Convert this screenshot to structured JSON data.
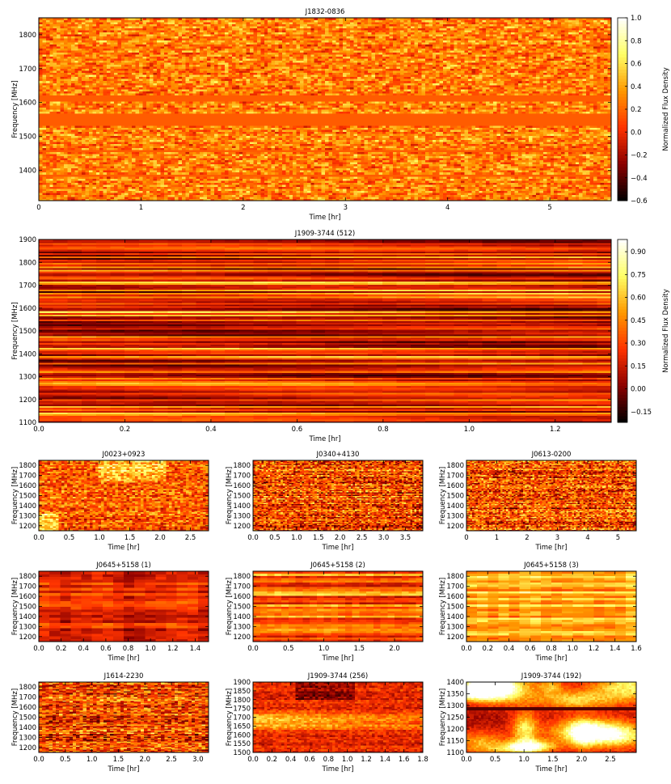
{
  "colormap": [
    "#000000",
    "#8b0000",
    "#ff3300",
    "#ff9900",
    "#ffff66",
    "#ffffff"
  ],
  "chart_data": [
    {
      "id": "p0",
      "type": "heatmap",
      "title": "J1832-0836",
      "xlabel": "Time [hr]",
      "ylabel": "Frequency [MHz]",
      "xlim": [
        0,
        5.6
      ],
      "ylim": [
        1310,
        1850
      ],
      "xticks": [
        0,
        1,
        2,
        3,
        4,
        5
      ],
      "yticks": [
        1400,
        1500,
        1600,
        1700,
        1800
      ],
      "pattern": "speckle",
      "seed": 11,
      "nx": 160,
      "ny": 90,
      "flat_bands": [
        [
          1605,
          1620
        ],
        [
          1535,
          1565
        ],
        [
          1455,
          1460
        ],
        [
          1385,
          1390
        ]
      ],
      "colorbar": {
        "label": "Normalized Flux Density",
        "range": [
          -0.6,
          1.0
        ],
        "ticks": [
          "1.0",
          "0.8",
          "0.6",
          "0.4",
          "0.2",
          "0.0",
          "−0.2",
          "−0.4",
          "−0.6"
        ]
      }
    },
    {
      "id": "p1",
      "type": "heatmap",
      "title": "J1909-3744 (512)",
      "xlabel": "Time [hr]",
      "ylabel": "Frequency [MHz]",
      "xlim": [
        0,
        1.33
      ],
      "ylim": [
        1100,
        1900
      ],
      "xticks": [
        0.0,
        0.2,
        0.4,
        0.6,
        0.8,
        1.0,
        1.2
      ],
      "yticks": [
        1100,
        1200,
        1300,
        1400,
        1500,
        1600,
        1700,
        1800,
        1900
      ],
      "pattern": "bands",
      "seed": 23,
      "nx": 40,
      "ny": 110,
      "colorbar": {
        "label": "Normalized Flux Density",
        "range": [
          -0.22,
          0.98
        ],
        "ticks": [
          "0.90",
          "0.75",
          "0.60",
          "0.45",
          "0.30",
          "0.15",
          "0.00",
          "−0.15"
        ]
      }
    },
    {
      "id": "p2",
      "type": "heatmap",
      "title": "J0023+0923",
      "xlabel": "Time [hr]",
      "ylabel": "Frequency [MHz]",
      "xlim": [
        0,
        2.8
      ],
      "ylim": [
        1150,
        1850
      ],
      "xticks": [
        0.0,
        0.5,
        1.0,
        1.5,
        2.0,
        2.5
      ],
      "yticks": [
        1200,
        1300,
        1400,
        1500,
        1600,
        1700,
        1800
      ],
      "pattern": "hot",
      "seed": 31,
      "nx": 60,
      "ny": 45
    },
    {
      "id": "p3",
      "type": "heatmap",
      "title": "J0340+4130",
      "xlabel": "Time [hr]",
      "ylabel": "Frequency [MHz]",
      "xlim": [
        0,
        3.9
      ],
      "ylim": [
        1150,
        1850
      ],
      "xticks": [
        0.0,
        0.5,
        1.0,
        1.5,
        2.0,
        2.5,
        3.0,
        3.5
      ],
      "yticks": [
        1200,
        1300,
        1400,
        1500,
        1600,
        1700,
        1800
      ],
      "pattern": "streaks",
      "seed": 37,
      "nx": 80,
      "ny": 60
    },
    {
      "id": "p4",
      "type": "heatmap",
      "title": "J0613-0200",
      "xlabel": "Time [hr]",
      "ylabel": "Frequency [MHz]",
      "xlim": [
        0,
        5.6
      ],
      "ylim": [
        1150,
        1850
      ],
      "xticks": [
        0,
        1,
        2,
        3,
        4,
        5
      ],
      "yticks": [
        1200,
        1300,
        1400,
        1500,
        1600,
        1700,
        1800
      ],
      "pattern": "streaks",
      "seed": 41,
      "nx": 90,
      "ny": 60
    },
    {
      "id": "p5",
      "type": "heatmap",
      "title": "J0645+5158 (1)",
      "xlabel": "Time [hr]",
      "ylabel": "Frequency [MHz]",
      "xlim": [
        0,
        1.52
      ],
      "ylim": [
        1150,
        1850
      ],
      "xticks": [
        0.0,
        0.2,
        0.4,
        0.6,
        0.8,
        1.0,
        1.2,
        1.4
      ],
      "yticks": [
        1200,
        1300,
        1400,
        1500,
        1600,
        1700,
        1800
      ],
      "pattern": "dark",
      "seed": 43,
      "nx": 16,
      "ny": 26
    },
    {
      "id": "p6",
      "type": "heatmap",
      "title": "J0645+5158 (2)",
      "xlabel": "Time [hr]",
      "ylabel": "Frequency [MHz]",
      "xlim": [
        0,
        2.4
      ],
      "ylim": [
        1150,
        1850
      ],
      "xticks": [
        0.0,
        0.5,
        1.0,
        1.5,
        2.0
      ],
      "yticks": [
        1200,
        1300,
        1400,
        1500,
        1600,
        1700,
        1800
      ],
      "pattern": "banded",
      "seed": 47,
      "nx": 24,
      "ny": 32
    },
    {
      "id": "p7",
      "type": "heatmap",
      "title": "J0645+5158 (3)",
      "xlabel": "Time [hr]",
      "ylabel": "Frequency [MHz]",
      "xlim": [
        0,
        1.6
      ],
      "ylim": [
        1150,
        1850
      ],
      "xticks": [
        0.0,
        0.2,
        0.4,
        0.6,
        0.8,
        1.0,
        1.2,
        1.4,
        1.6
      ],
      "yticks": [
        1200,
        1300,
        1400,
        1500,
        1600,
        1700,
        1800
      ],
      "pattern": "bright",
      "seed": 53,
      "nx": 16,
      "ny": 32
    },
    {
      "id": "p8",
      "type": "heatmap",
      "title": "J1614-2230",
      "xlabel": "Time [hr]",
      "ylabel": "Frequency [MHz]",
      "xlim": [
        0,
        3.2
      ],
      "ylim": [
        1150,
        1850
      ],
      "xticks": [
        0.0,
        0.5,
        1.0,
        1.5,
        2.0,
        2.5,
        3.0
      ],
      "yticks": [
        1200,
        1300,
        1400,
        1500,
        1600,
        1700,
        1800
      ],
      "pattern": "streaks",
      "seed": 59,
      "nx": 50,
      "ny": 70
    },
    {
      "id": "p9",
      "type": "heatmap",
      "title": "J1909-3744 (256)",
      "xlabel": "Time [hr]",
      "ylabel": "Frequency [MHz]",
      "xlim": [
        0,
        1.8
      ],
      "ylim": [
        1500,
        1900
      ],
      "xticks": [
        0.0,
        0.2,
        0.4,
        0.6,
        0.8,
        1.0,
        1.2,
        1.4,
        1.6,
        1.8
      ],
      "yticks": [
        1500,
        1550,
        1600,
        1650,
        1700,
        1750,
        1800,
        1850,
        1900
      ],
      "pattern": "scint",
      "seed": 61,
      "nx": 60,
      "ny": 40
    },
    {
      "id": "p10",
      "type": "heatmap",
      "title": "J1909-3744 (192)",
      "xlabel": "Time [hr]",
      "ylabel": "Frequency [MHz]",
      "xlim": [
        0,
        2.95
      ],
      "ylim": [
        1100,
        1400
      ],
      "xticks": [
        0.0,
        0.5,
        1.0,
        1.5,
        2.0,
        2.5
      ],
      "yticks": [
        1100,
        1150,
        1200,
        1250,
        1300,
        1350,
        1400
      ],
      "pattern": "blobs",
      "seed": 67,
      "nx": 70,
      "ny": 40
    }
  ]
}
